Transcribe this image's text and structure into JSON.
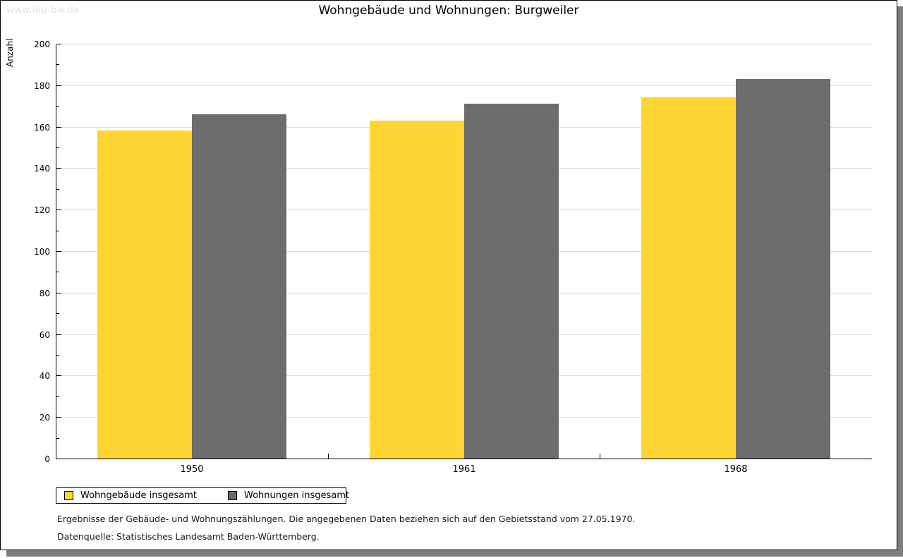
{
  "watermark": "www.leo-bw.de",
  "title": "Wohngebäude und Wohnungen: Burgweiler",
  "chart_data": {
    "type": "bar",
    "title": "Wohngebäude und Wohnungen: Burgweiler",
    "categories": [
      "1950",
      "1961",
      "1968"
    ],
    "series": [
      {
        "name": "Wohngebäude insgesamt",
        "color": "#fdd633",
        "values": [
          158,
          163,
          174
        ]
      },
      {
        "name": "Wohnungen insgesamt",
        "color": "#6d6d6d",
        "values": [
          166,
          171,
          183
        ]
      }
    ],
    "xlabel": "",
    "ylabel": "Anzahl",
    "ylim": [
      0,
      200
    ],
    "ytick_step": 20,
    "ytick_minor_step": 10,
    "grid": true,
    "gridline_color": "#dcdcdc",
    "legend_position": "bottom-left"
  },
  "footnotes": [
    "Ergebnisse der Gebäude- und Wohnungszählungen. Die angegebenen Daten beziehen sich auf den Gebietsstand vom 27.05.1970.",
    "Datenquelle: Statistisches Landesamt Baden-Württemberg."
  ]
}
